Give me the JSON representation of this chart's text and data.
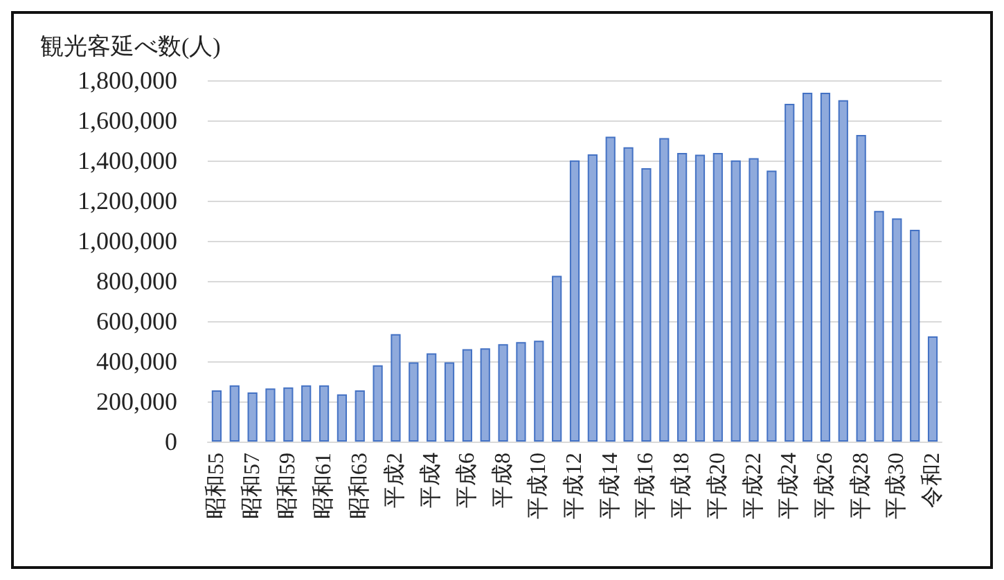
{
  "chart_data": {
    "type": "bar",
    "ylabel": "観光客延べ数(人)",
    "categories": [
      "昭和55",
      null,
      "昭和57",
      null,
      "昭和59",
      null,
      "昭和61",
      null,
      "昭和63",
      null,
      "平成2",
      null,
      "平成4",
      null,
      "平成6",
      null,
      "平成8",
      null,
      "平成10",
      null,
      "平成12",
      null,
      "平成14",
      null,
      "平成16",
      null,
      "平成18",
      null,
      "平成20",
      null,
      "平成22",
      null,
      "平成24",
      null,
      "平成26",
      null,
      "平成28",
      null,
      "平成30",
      null,
      "令和2"
    ],
    "values": [
      255000,
      280000,
      245000,
      265000,
      270000,
      280000,
      280000,
      235000,
      255000,
      380000,
      535000,
      395000,
      440000,
      395000,
      460000,
      465000,
      485000,
      496000,
      503000,
      826000,
      1401000,
      1431000,
      1519000,
      1466000,
      1362000,
      1512000,
      1438000,
      1429000,
      1438000,
      1401000,
      1412000,
      1350000,
      1683000,
      1738000,
      1738000,
      1701000,
      1528000,
      1149000,
      1112000,
      1055000,
      524000
    ],
    "color": "#8faadc",
    "ylim": [
      0,
      1800000
    ],
    "yticks": [
      0,
      {
        "value": 200000,
        "label": "200,000"
      },
      {
        "value": 400000,
        "label": "400,000"
      },
      {
        "value": 600000,
        "label": "600,000"
      },
      {
        "value": 800000,
        "label": "800,000"
      },
      {
        "value": 1000000,
        "label": "1,000,000"
      },
      {
        "value": 1200000,
        "label": "1,200,000"
      },
      {
        "value": 1400000,
        "label": "1,400,000"
      },
      {
        "value": 1600000,
        "label": "1,600,000"
      },
      {
        "value": 1800000,
        "label": "1,800,000"
      }
    ],
    "grid": "y"
  }
}
